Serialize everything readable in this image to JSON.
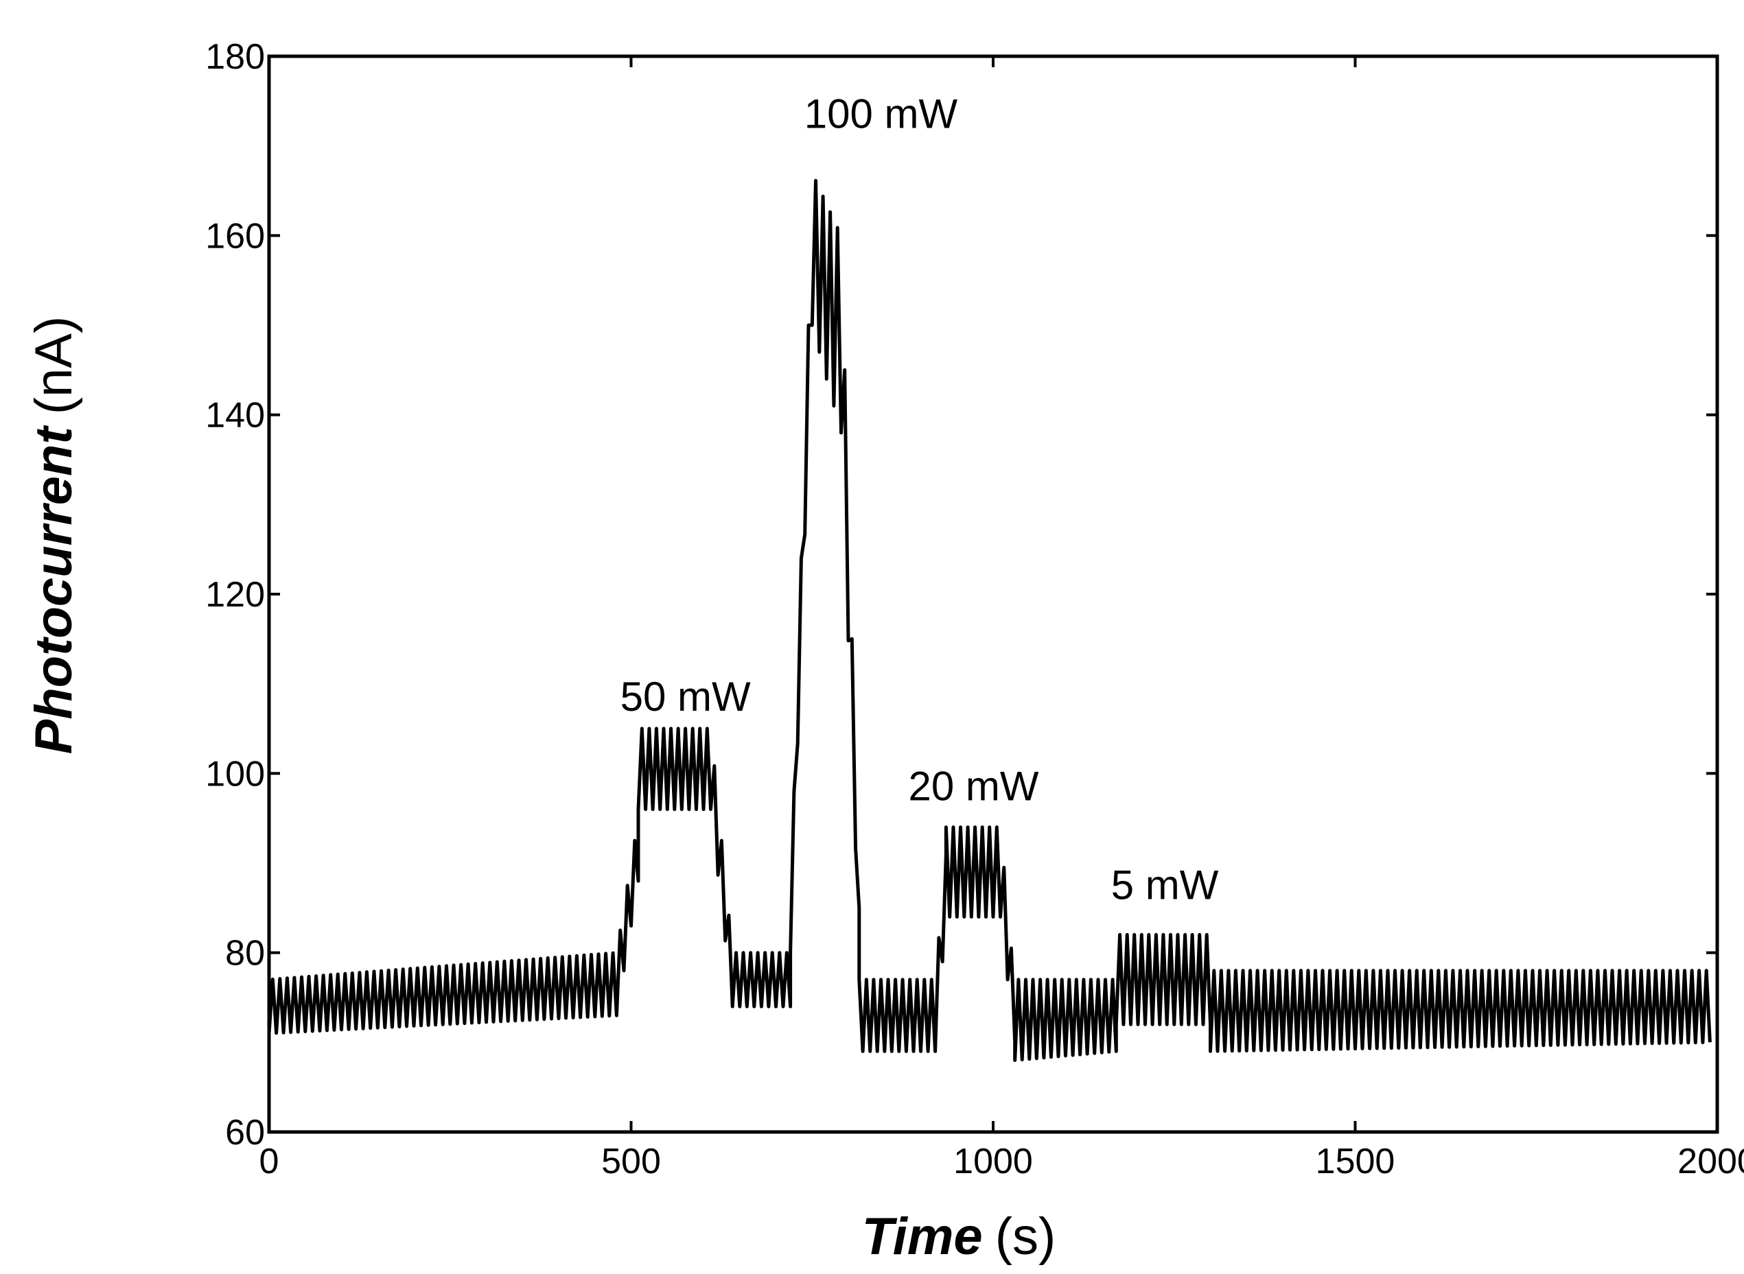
{
  "chart_data": {
    "type": "line",
    "title": "",
    "xlabel": {
      "emphasis": "Time",
      "unit": "(s)"
    },
    "ylabel": {
      "emphasis": "Photocurrent",
      "unit": "(nA)"
    },
    "xlim": [
      0,
      2000
    ],
    "ylim": [
      60,
      180
    ],
    "xticks": [
      0,
      500,
      1000,
      1500,
      2000
    ],
    "yticks": [
      60,
      80,
      100,
      120,
      140,
      160,
      180
    ],
    "grid": false,
    "legend": "none",
    "line_color": "#000000",
    "series": [
      {
        "x_range": [
          0,
          1990
        ],
        "oscillation_period_s": 10,
        "segments": [
          {
            "x": [
              0,
              480
            ],
            "y_low": [
              71,
              73
            ],
            "y_high": [
              77,
              80
            ]
          },
          {
            "x": [
              480,
              510
            ],
            "y_low": [
              73,
              88
            ],
            "y_high": [
              80,
              95
            ]
          },
          {
            "x": [
              510,
              610
            ],
            "y_low": [
              96,
              96
            ],
            "y_high": [
              105,
              105
            ]
          },
          {
            "x": [
              610,
              640
            ],
            "y_low": [
              96,
              74
            ],
            "y_high": [
              105,
              80
            ]
          },
          {
            "x": [
              640,
              720
            ],
            "y_low": [
              74,
              74
            ],
            "y_high": [
              80,
              80
            ]
          },
          {
            "x": [
              720,
              750
            ],
            "y_low": [
              80,
              150
            ],
            "y_high": [
              85,
              163
            ]
          },
          {
            "x": [
              750,
              790
            ],
            "y_low": [
              150,
              138
            ],
            "y_high": [
              167,
              160
            ]
          },
          {
            "x": [
              790,
              815
            ],
            "y_low": [
              138,
              80
            ],
            "y_high": [
              160,
              85
            ]
          },
          {
            "x": [
              815,
              920
            ],
            "y_low": [
              69,
              69
            ],
            "y_high": [
              77,
              77
            ]
          },
          {
            "x": [
              920,
              935
            ],
            "y_low": [
              69,
              84
            ],
            "y_high": [
              77,
              91
            ]
          },
          {
            "x": [
              935,
              1010
            ],
            "y_low": [
              84,
              84
            ],
            "y_high": [
              94,
              94
            ]
          },
          {
            "x": [
              1010,
              1030
            ],
            "y_low": [
              84,
              70
            ],
            "y_high": [
              94,
              76
            ]
          },
          {
            "x": [
              1030,
              1170
            ],
            "y_low": [
              68,
              69
            ],
            "y_high": [
              77,
              77
            ]
          },
          {
            "x": [
              1170,
              1300
            ],
            "y_low": [
              72,
              72
            ],
            "y_high": [
              82,
              82
            ]
          },
          {
            "x": [
              1300,
              1990
            ],
            "y_low": [
              69,
              70
            ],
            "y_high": [
              78,
              78
            ]
          }
        ]
      }
    ],
    "annotations": [
      {
        "text": "50 mW",
        "x": 575,
        "y": 107
      },
      {
        "text": "100 mW",
        "x": 845,
        "y": 172
      },
      {
        "text": "20 mW",
        "x": 973,
        "y": 97
      },
      {
        "text": "5 mW",
        "x": 1237,
        "y": 86
      }
    ]
  }
}
